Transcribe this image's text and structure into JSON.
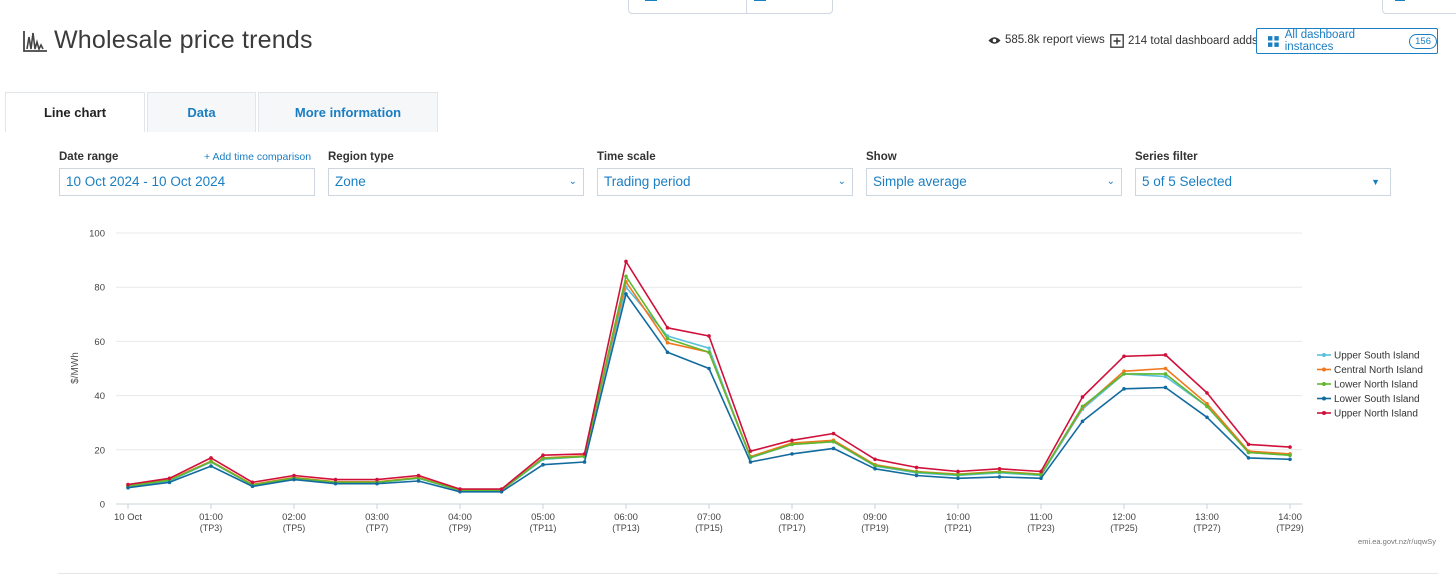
{
  "header": {
    "title": "Wholesale price trends",
    "views": "585.8k report views",
    "dashboard_adds": "214 total dashboard adds",
    "instances_label": "All dashboard instances",
    "instances_count": "156"
  },
  "tabs": [
    {
      "label": "Line chart",
      "active": true
    },
    {
      "label": "Data",
      "active": false
    },
    {
      "label": "More information",
      "active": false
    }
  ],
  "filters": {
    "date_range": {
      "label": "Date range",
      "value": "10 Oct 2024 - 10 Oct 2024",
      "add_link": "+ Add time comparison"
    },
    "region_type": {
      "label": "Region type",
      "value": "Zone"
    },
    "time_scale": {
      "label": "Time scale",
      "value": "Trading period"
    },
    "show": {
      "label": "Show",
      "value": "Simple average"
    },
    "series_filter": {
      "label": "Series filter",
      "value": "5 of 5 Selected"
    }
  },
  "chart_data": {
    "type": "line",
    "ylabel": "$/MWh",
    "xlabel": "",
    "ylim": [
      0,
      100
    ],
    "yticks": [
      0,
      20,
      40,
      60,
      80,
      100
    ],
    "x_tick_labels": [
      [
        "10 Oct",
        ""
      ],
      [
        "01:00",
        "(TP3)"
      ],
      [
        "02:00",
        "(TP5)"
      ],
      [
        "03:00",
        "(TP7)"
      ],
      [
        "04:00",
        "(TP9)"
      ],
      [
        "05:00",
        "(TP11)"
      ],
      [
        "06:00",
        "(TP13)"
      ],
      [
        "07:00",
        "(TP15)"
      ],
      [
        "08:00",
        "(TP17)"
      ],
      [
        "09:00",
        "(TP19)"
      ],
      [
        "10:00",
        "(TP21)"
      ],
      [
        "11:00",
        "(TP23)"
      ],
      [
        "12:00",
        "(TP25)"
      ],
      [
        "13:00",
        "(TP27)"
      ],
      [
        "14:00",
        "(TP29)"
      ]
    ],
    "x": [
      "00:00",
      "00:30",
      "01:00",
      "01:30",
      "02:00",
      "02:30",
      "03:00",
      "03:30",
      "04:00",
      "04:30",
      "05:00",
      "05:30",
      "06:00",
      "06:30",
      "07:00",
      "07:30",
      "08:00",
      "08:30",
      "09:00",
      "09:30",
      "10:00",
      "10:30",
      "11:00",
      "11:30",
      "12:00",
      "12:30",
      "13:00",
      "13:30",
      "14:00"
    ],
    "series": [
      {
        "name": "Upper South Island",
        "color": "#5bc0de",
        "values": [
          6.5,
          8.5,
          15.5,
          7,
          9.5,
          8,
          8,
          9.5,
          5,
          5,
          16.5,
          17.5,
          80,
          62,
          57.5,
          17,
          22,
          23,
          14,
          11.5,
          10.5,
          11.5,
          10.5,
          35,
          48,
          47,
          36,
          19,
          18
        ]
      },
      {
        "name": "Central North Island",
        "color": "#f0781e",
        "values": [
          6.8,
          9,
          15.8,
          7.2,
          9.8,
          8.2,
          8.2,
          9.8,
          5,
          5,
          17,
          17.8,
          82,
          59.5,
          56,
          17.5,
          22.5,
          23.5,
          14.5,
          12,
          11,
          12,
          11,
          35.5,
          49,
          50,
          37,
          19.5,
          18.5
        ]
      },
      {
        "name": "Lower North Island",
        "color": "#5fb82e",
        "values": [
          6.6,
          8.8,
          15.6,
          7,
          9.6,
          8,
          8,
          9.6,
          5,
          5,
          16.8,
          17.5,
          84,
          61,
          56,
          17.2,
          22,
          23,
          14.2,
          11.8,
          10.8,
          11.8,
          10.8,
          36,
          48,
          48,
          36,
          19,
          18
        ]
      },
      {
        "name": "Lower South Island",
        "color": "#126b9e",
        "values": [
          6,
          8,
          14,
          6.5,
          9,
          7.5,
          7.5,
          8.5,
          4.5,
          4.5,
          14.5,
          15.5,
          77.5,
          56,
          50,
          15.5,
          18.5,
          20.5,
          13,
          10.5,
          9.5,
          10,
          9.5,
          30.5,
          42.5,
          43,
          32,
          17,
          16.5
        ]
      },
      {
        "name": "Upper North Island",
        "color": "#d0103a",
        "values": [
          7.2,
          9.5,
          17,
          8,
          10.5,
          9,
          9,
          10.5,
          5.5,
          5.5,
          18,
          18.5,
          89.5,
          65,
          62,
          19.5,
          23.5,
          26,
          16.5,
          13.5,
          12,
          13,
          12,
          39.5,
          54.5,
          55,
          41,
          22,
          21
        ]
      }
    ],
    "legend_position": "right",
    "grid": true,
    "source_note": "emi.ea.govt.nz/r/uqwSy"
  }
}
